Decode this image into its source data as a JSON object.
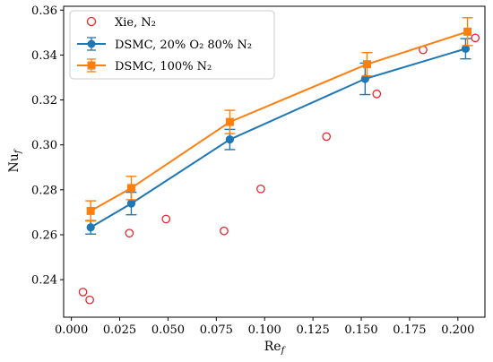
{
  "chart_data": {
    "type": "scatter",
    "xlabel": "Re",
    "xlabel_sub": "f",
    "ylabel": "Nu",
    "ylabel_sub": "f",
    "xlim": [
      -0.004,
      0.214
    ],
    "ylim": [
      0.2233,
      0.3617
    ],
    "xticks": [
      0.0,
      0.025,
      0.05,
      0.075,
      0.1,
      0.125,
      0.15,
      0.175,
      0.2
    ],
    "xtick_labels": [
      "0.000",
      "0.025",
      "0.050",
      "0.075",
      "0.100",
      "0.125",
      "0.150",
      "0.175",
      "0.200"
    ],
    "yticks": [
      0.24,
      0.26,
      0.28,
      0.3,
      0.32,
      0.34,
      0.36
    ],
    "ytick_labels": [
      "0.24",
      "0.26",
      "0.28",
      "0.30",
      "0.32",
      "0.34",
      "0.36"
    ],
    "grid": false,
    "legend_position": "top-left",
    "series": [
      {
        "name": "Xie, N₂",
        "style": "open-circle",
        "color": "#e8262a",
        "x": [
          0.006,
          0.0095,
          0.03,
          0.049,
          0.079,
          0.098,
          0.132,
          0.158,
          0.182,
          0.209
        ],
        "y": [
          0.2345,
          0.231,
          0.2607,
          0.267,
          0.2617,
          0.2804,
          0.3037,
          0.3227,
          0.3423,
          0.3476
        ]
      },
      {
        "name": "DSMC, 20% O₂ 80% N₂",
        "style": "line-circle-errorbar",
        "color": "#1f77b4",
        "x": [
          0.01,
          0.031,
          0.082,
          0.152,
          0.204
        ],
        "y": [
          0.2633,
          0.2739,
          0.3024,
          0.3294,
          0.3428
        ],
        "err": [
          0.003,
          0.005,
          0.0045,
          0.007,
          0.0045
        ]
      },
      {
        "name": "DSMC, 100% N₂",
        "style": "line-square-errorbar",
        "color": "#ff7f0e",
        "x": [
          0.01,
          0.031,
          0.082,
          0.153,
          0.205
        ],
        "y": [
          0.2706,
          0.2808,
          0.3102,
          0.3359,
          0.3504
        ],
        "err": [
          0.0045,
          0.0052,
          0.0052,
          0.0052,
          0.0062
        ]
      }
    ]
  }
}
